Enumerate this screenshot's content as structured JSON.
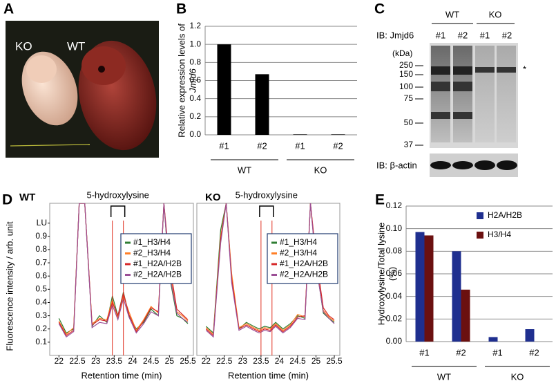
{
  "panel_labels": [
    "A",
    "B",
    "C",
    "D",
    "E"
  ],
  "panel_a": {
    "labels": [
      "KO",
      "WT"
    ]
  },
  "panel_c": {
    "groups": [
      "WT",
      "KO"
    ],
    "lanes": [
      "#1",
      "#2",
      "#1",
      "#2"
    ],
    "antibody_top": "IB: Jmjd6",
    "antibody_bottom": "IB: β-actin",
    "unit": "(kDa)",
    "ladder": [
      250,
      150,
      100,
      75,
      50,
      37
    ],
    "asterisk": "*"
  },
  "chart_data": [
    {
      "type": "bar",
      "ylabel_lines": [
        "Relative expression levels of",
        "Jmjd6"
      ],
      "categories": [
        "#1",
        "#2",
        "#1",
        "#2"
      ],
      "groups": [
        "WT",
        "KO"
      ],
      "values": [
        1.0,
        0.67,
        0.005,
        0.005
      ],
      "color": "#000000",
      "ylim": [
        0,
        1.2
      ],
      "yticks": [
        {
          "value": 0,
          "label": "0.0"
        },
        0.2,
        0.4,
        0.6,
        0.8,
        {
          "value": 1,
          "label": "1.0"
        },
        1.2
      ],
      "grid": true
    },
    {
      "type": "line",
      "title": "WT",
      "annotation": "5-hydroxylysine",
      "ylabel": "Fluorescence intensity / arb. unit",
      "xlabel": "Retention time (min)",
      "x": [
        22,
        22.2,
        22.4,
        22.55,
        22.7,
        22.9,
        23.1,
        23.3,
        23.45,
        23.6,
        23.75,
        23.9,
        24.1,
        24.3,
        24.5,
        24.7,
        24.85,
        25,
        25.2,
        25.35,
        25.5
      ],
      "series": [
        {
          "name": "#1_H3/H4",
          "color": "#2e7d32",
          "values": [
            0.28,
            0.17,
            0.2,
            1.15,
            1.15,
            0.22,
            0.3,
            0.25,
            0.45,
            0.3,
            0.48,
            0.3,
            0.2,
            0.25,
            0.35,
            0.3,
            1.15,
            0.6,
            0.3,
            0.28,
            0.24
          ]
        },
        {
          "name": "#2_H3/H4",
          "color": "#ff7f27",
          "values": [
            0.26,
            0.16,
            0.21,
            1.15,
            1.15,
            0.24,
            0.28,
            0.27,
            0.42,
            0.28,
            0.45,
            0.33,
            0.19,
            0.27,
            0.37,
            0.32,
            1.15,
            0.65,
            0.33,
            0.3,
            0.26
          ]
        },
        {
          "name": "#1_H2A/H2B",
          "color": "#d62728",
          "values": [
            0.25,
            0.15,
            0.19,
            1.15,
            1.15,
            0.23,
            0.27,
            0.26,
            0.4,
            0.3,
            0.47,
            0.31,
            0.18,
            0.26,
            0.36,
            0.33,
            1.15,
            0.7,
            0.35,
            0.31,
            0.27
          ]
        },
        {
          "name": "#2_H2A/H2B",
          "color": "#9b4f96",
          "values": [
            0.24,
            0.14,
            0.18,
            1.15,
            1.15,
            0.21,
            0.25,
            0.24,
            0.38,
            0.27,
            0.43,
            0.29,
            0.17,
            0.24,
            0.33,
            0.3,
            1.15,
            0.62,
            0.32,
            0.28,
            0.25
          ]
        }
      ],
      "reference_lines": [
        23.45,
        23.75
      ],
      "reference_color": "#e03020",
      "xlim": [
        21.75,
        25.65
      ],
      "ylim": [
        0,
        1.15
      ],
      "xticks": [
        22,
        22.5,
        23,
        23.5,
        24,
        24.5,
        25,
        25.5
      ],
      "yticks": [
        0.1,
        0.2,
        0.3,
        0.4,
        0.5,
        0.6,
        0.7,
        0.8,
        0.9,
        {
          "value": 1,
          "label": "LU"
        }
      ]
    },
    {
      "type": "line",
      "title": "KO",
      "annotation": "5-hydroxylysine",
      "xlabel": "Retention time (min)",
      "x": [
        22,
        22.2,
        22.4,
        22.55,
        22.7,
        22.9,
        23.1,
        23.3,
        23.45,
        23.6,
        23.75,
        23.9,
        24.1,
        24.3,
        24.5,
        24.7,
        24.85,
        25,
        25.2,
        25.35,
        25.5
      ],
      "series": [
        {
          "name": "#1_H3/H4",
          "color": "#2e7d32",
          "values": [
            0.22,
            0.17,
            0.95,
            1.15,
            0.6,
            0.2,
            0.25,
            0.22,
            0.2,
            0.22,
            0.21,
            0.25,
            0.2,
            0.24,
            0.3,
            0.28,
            1.15,
            0.7,
            0.32,
            0.28,
            0.25
          ]
        },
        {
          "name": "#2_H3/H4",
          "color": "#ff7f27",
          "values": [
            0.21,
            0.16,
            0.9,
            1.15,
            0.62,
            0.21,
            0.24,
            0.21,
            0.19,
            0.21,
            0.2,
            0.24,
            0.19,
            0.23,
            0.31,
            0.29,
            1.15,
            0.72,
            0.34,
            0.29,
            0.26
          ]
        },
        {
          "name": "#1_H2A/H2B",
          "color": "#d62728",
          "values": [
            0.2,
            0.15,
            0.88,
            1.15,
            0.58,
            0.2,
            0.23,
            0.2,
            0.18,
            0.2,
            0.19,
            0.23,
            0.18,
            0.22,
            0.29,
            0.3,
            1.15,
            0.75,
            0.36,
            0.3,
            0.27
          ]
        },
        {
          "name": "#2_H2A/H2B",
          "color": "#9b4f96",
          "values": [
            0.19,
            0.14,
            0.85,
            1.15,
            0.55,
            0.19,
            0.22,
            0.19,
            0.17,
            0.19,
            0.18,
            0.22,
            0.17,
            0.21,
            0.28,
            0.27,
            1.15,
            0.68,
            0.33,
            0.28,
            0.24
          ]
        }
      ],
      "reference_lines": [
        23.5,
        23.8
      ],
      "reference_color": "#e03020",
      "xlim": [
        21.75,
        25.65
      ],
      "ylim": [
        0,
        1.15
      ],
      "xticks": [
        22,
        22.5,
        23,
        23.5,
        24,
        24.5,
        25,
        25.5
      ]
    },
    {
      "type": "bar",
      "ylabel_lines": [
        "Hydroxylysine/Total lysine",
        "(%)"
      ],
      "categories": [
        "#1",
        "#2",
        "#1",
        "#2"
      ],
      "groups": [
        "WT",
        "KO"
      ],
      "series": [
        {
          "name": "H2A/H2B",
          "color": "#1f2f8f",
          "values": [
            0.097,
            0.08,
            0.004,
            0.011
          ]
        },
        {
          "name": "H3/H4",
          "color": "#6b1010",
          "values": [
            0.094,
            0.046,
            0,
            0
          ]
        }
      ],
      "ylim": [
        0,
        0.12
      ],
      "yticks": [
        {
          "value": 0,
          "label": "0.00"
        },
        0.02,
        0.04,
        0.06,
        0.08,
        {
          "value": 0.1,
          "label": "0.10"
        },
        0.12
      ],
      "grid": true,
      "legend": "upper-right"
    }
  ]
}
